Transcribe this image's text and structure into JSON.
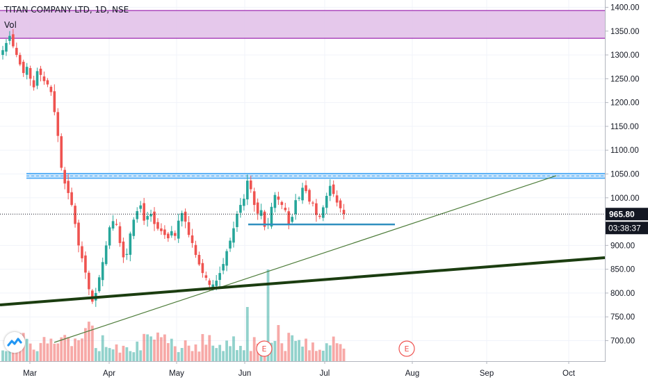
{
  "header": {
    "title": "TITAN COMPANY LTD, 1D, NSE",
    "volume_label": "Vol"
  },
  "price_label": "965.80",
  "countdown_label": "03:38:37",
  "event_markers": [
    "E",
    "E"
  ],
  "colors": {
    "up": "#26a69a",
    "down": "#ef5350",
    "purple_band": "#e1bee7",
    "purple_line": "#ab47bc",
    "resistance": "#42a5f5",
    "trend_thin": "#4e7d3a",
    "trend_thick": "#1b3d10"
  },
  "chart_data": {
    "type": "candlestick",
    "title": "TITAN COMPANY LTD, 1D, NSE",
    "y_ticks": [
      1400,
      1350,
      1300,
      1250,
      1200,
      1150,
      1100,
      1050,
      1000,
      900,
      850,
      800,
      750,
      700
    ],
    "y_tick_labels": [
      "1400.00",
      "1350.00",
      "1300.00",
      "1250.00",
      "1200.00",
      "1150.00",
      "1100.00",
      "1050.00",
      "1000.00",
      "900.00",
      "850.00",
      "800.00",
      "750.00",
      "700.00"
    ],
    "ylim": [
      650,
      1410
    ],
    "x_labels": [
      "Mar",
      "Apr",
      "May",
      "Jun",
      "Jul",
      "Aug",
      "Sep",
      "Oct"
    ],
    "last_price": 965.8,
    "zones": [
      {
        "name": "purple-band",
        "from": 1335,
        "to": 1393
      },
      {
        "name": "resistance",
        "from": 1041,
        "to": 1051
      }
    ],
    "support": 944,
    "closes": [
      1310,
      1325,
      1340,
      1318,
      1300,
      1280,
      1262,
      1275,
      1250,
      1232,
      1266,
      1258,
      1245,
      1238,
      1222,
      1180,
      1130,
      1063,
      1030,
      1010,
      985,
      945,
      900,
      873,
      843,
      808,
      782,
      800,
      833,
      865,
      900,
      938,
      951,
      945,
      905,
      875,
      882,
      925,
      954,
      972,
      984,
      952,
      962,
      966,
      945,
      935,
      930,
      922,
      915,
      930,
      920,
      952,
      968,
      950,
      922,
      905,
      880,
      860,
      842,
      832,
      817,
      818,
      826,
      842,
      861,
      888,
      910,
      936,
      966,
      985,
      998,
      1036,
      1018,
      985,
      967,
      974,
      939,
      945,
      981,
      1006,
      996,
      985,
      974,
      945,
      960,
      995,
      1000,
      1021,
      1014,
      992,
      988,
      964,
      960,
      980,
      1004,
      1025,
      1008,
      990,
      978,
      966
    ]
  }
}
